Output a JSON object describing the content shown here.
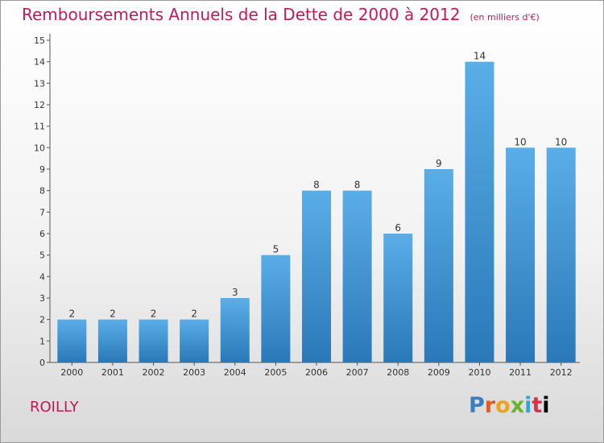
{
  "header": {
    "title": "Remboursements Annuels de la Dette de 2000 à 2012",
    "subtitle": "(en milliers d'€)"
  },
  "footer": {
    "town": "ROILLY",
    "brand_letters": [
      "P",
      "r",
      "o",
      "x",
      "i",
      "t",
      "i"
    ]
  },
  "colors": {
    "title": "#c2185b",
    "bar_top": "#5aaee8",
    "bar_bottom": "#2a78b8"
  },
  "chart_data": {
    "type": "bar",
    "categories": [
      "2000",
      "2001",
      "2002",
      "2003",
      "2004",
      "2005",
      "2006",
      "2007",
      "2008",
      "2009",
      "2010",
      "2011",
      "2012"
    ],
    "values": [
      2,
      2,
      2,
      2,
      3,
      5,
      8,
      8,
      6,
      9,
      14,
      10,
      10
    ],
    "ylim": [
      0,
      15
    ],
    "yticks": [
      0,
      1,
      2,
      3,
      4,
      5,
      6,
      7,
      8,
      9,
      10,
      11,
      12,
      13,
      14,
      15
    ],
    "grid": false,
    "data_labels": true,
    "xlabel": "",
    "ylabel": ""
  }
}
